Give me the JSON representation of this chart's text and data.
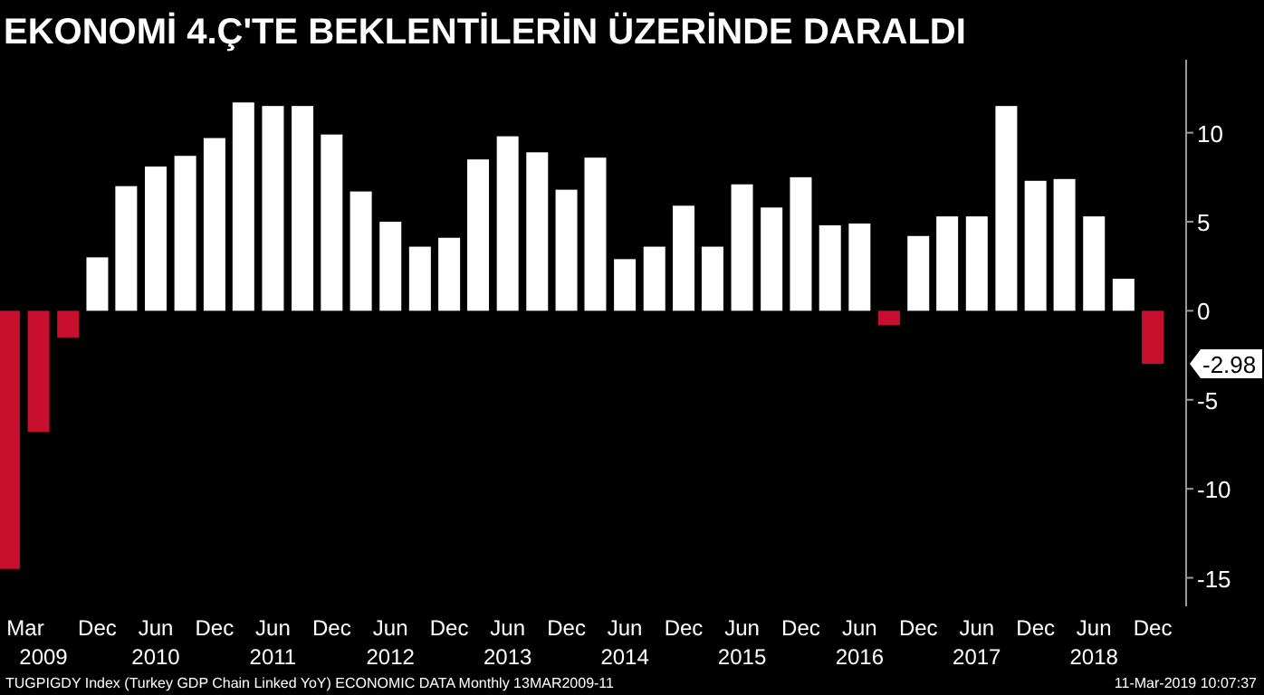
{
  "chart_data": {
    "type": "bar",
    "title": "EKONOMİ 4.Ç'TE BEKLENTİLERİN ÜZERİNDE DARALDI",
    "x": [
      "2009-03",
      "2009-06",
      "2009-09",
      "2009-12",
      "2010-03",
      "2010-06",
      "2010-09",
      "2010-12",
      "2011-03",
      "2011-06",
      "2011-09",
      "2011-12",
      "2012-03",
      "2012-06",
      "2012-09",
      "2012-12",
      "2013-03",
      "2013-06",
      "2013-09",
      "2013-12",
      "2014-03",
      "2014-06",
      "2014-09",
      "2014-12",
      "2015-03",
      "2015-06",
      "2015-09",
      "2015-12",
      "2016-03",
      "2016-06",
      "2016-09",
      "2016-12",
      "2017-03",
      "2017-06",
      "2017-09",
      "2017-12",
      "2018-03",
      "2018-06",
      "2018-09",
      "2018-12"
    ],
    "values": [
      -14.5,
      -6.8,
      -1.5,
      3.0,
      7.0,
      8.1,
      8.7,
      9.7,
      11.7,
      11.5,
      11.5,
      9.9,
      6.7,
      5.0,
      3.6,
      4.1,
      8.5,
      9.8,
      8.9,
      6.8,
      8.6,
      2.9,
      3.6,
      5.9,
      3.6,
      7.1,
      5.8,
      7.5,
      4.8,
      4.9,
      -0.8,
      4.2,
      5.3,
      5.3,
      11.5,
      7.3,
      7.4,
      5.3,
      1.8,
      -2.98
    ],
    "colors": [
      "#c8102e",
      "#c8102e",
      "#c8102e",
      "#ffffff",
      "#ffffff",
      "#ffffff",
      "#ffffff",
      "#ffffff",
      "#ffffff",
      "#ffffff",
      "#ffffff",
      "#ffffff",
      "#ffffff",
      "#ffffff",
      "#ffffff",
      "#ffffff",
      "#ffffff",
      "#ffffff",
      "#ffffff",
      "#ffffff",
      "#ffffff",
      "#ffffff",
      "#ffffff",
      "#ffffff",
      "#ffffff",
      "#ffffff",
      "#ffffff",
      "#ffffff",
      "#ffffff",
      "#ffffff",
      "#c8102e",
      "#ffffff",
      "#ffffff",
      "#ffffff",
      "#ffffff",
      "#ffffff",
      "#ffffff",
      "#ffffff",
      "#ffffff",
      "#c8102e"
    ],
    "xlim": [
      "2009-02",
      "2019-03-15"
    ],
    "xticks": [
      {
        "value": "2009-03",
        "label": "Mar 2009"
      },
      {
        "value": "2009-12",
        "label": "Dec"
      },
      {
        "value": "2010-06",
        "label": "Jun 2010"
      },
      {
        "value": "2010-12",
        "label": "Dec"
      },
      {
        "value": "2011-06",
        "label": "Jun 2011"
      },
      {
        "value": "2011-12",
        "label": "Dec"
      },
      {
        "value": "2012-06",
        "label": "Jun 2012"
      },
      {
        "value": "2012-12",
        "label": "Dec"
      },
      {
        "value": "2013-06",
        "label": "Jun 2013"
      },
      {
        "value": "2013-12",
        "label": "Dec"
      },
      {
        "value": "2014-06",
        "label": "Jun 2014"
      },
      {
        "value": "2014-12",
        "label": "Dec"
      },
      {
        "value": "2015-06",
        "label": "Jun 2015"
      },
      {
        "value": "2015-12",
        "label": "Dec"
      },
      {
        "value": "2016-06",
        "label": "Jun 2016"
      },
      {
        "value": "2016-12",
        "label": "Dec"
      },
      {
        "value": "2017-06",
        "label": "Jun 2017"
      },
      {
        "value": "2017-12",
        "label": "Dec"
      },
      {
        "value": "2018-06",
        "label": "Jun 2018"
      },
      {
        "value": "2018-12",
        "label": "Dec"
      }
    ],
    "ylim": [
      -16.6,
      14.1
    ],
    "yticks": [
      -15,
      -10,
      -5,
      0,
      5,
      10
    ],
    "annotations": [
      {
        "text": "-2.98",
        "y": -2.98
      },
      "TUGPIGDY Index (Turkey GDP Chain Linked YoY) ECONOMIC DATA  Monthly 13MAR2009-11",
      "11-Mar-2019 10:07:37"
    ]
  }
}
